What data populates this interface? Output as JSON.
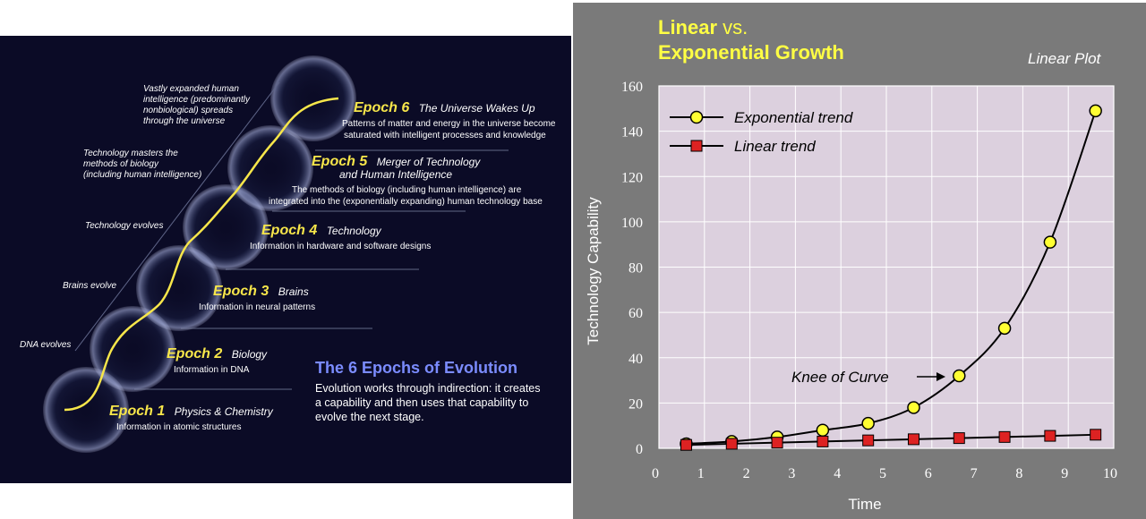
{
  "epochs_diagram": {
    "title": "The 6 Epochs of Evolution",
    "description": [
      "Evolution works through indirection: it creates",
      "a capability and then uses that capability to",
      "evolve the next stage."
    ],
    "side_labels": [
      {
        "lines": [
          "DNA evolves"
        ]
      },
      {
        "lines": [
          "Brains evolve"
        ]
      },
      {
        "lines": [
          "Technology evolves"
        ]
      },
      {
        "lines": [
          "Technology masters the",
          "methods of biology",
          "(including human intelligence)"
        ]
      },
      {
        "lines": [
          "Vastly expanded human",
          "intelligence (predominantly",
          "nonbiological) spreads",
          "through the universe"
        ]
      }
    ],
    "epochs": [
      {
        "label": "Epoch 1",
        "name": "Physics & Chemistry",
        "desc": [
          "Information in atomic structures"
        ]
      },
      {
        "label": "Epoch 2",
        "name": "Biology",
        "desc": [
          "Information in DNA"
        ]
      },
      {
        "label": "Epoch 3",
        "name": "Brains",
        "desc": [
          "Information in neural patterns"
        ]
      },
      {
        "label": "Epoch 4",
        "name": "Technology",
        "desc": [
          "Information in hardware and software designs"
        ]
      },
      {
        "label": "Epoch 5",
        "name": "Merger of Technology",
        "name2": "and Human Intelligence",
        "desc": [
          "The methods of biology (including human intelligence) are",
          "integrated into the (exponentially expanding) human technology base"
        ]
      },
      {
        "label": "Epoch 6",
        "name": "The Universe Wakes Up",
        "desc": [
          "Patterns of matter and energy in the universe become",
          "saturated with intelligent processes and knowledge"
        ]
      }
    ]
  },
  "growth_chart": {
    "title_line1_bold": "Linear",
    "title_line1_vs": "vs.",
    "title_line2": "Exponential Growth",
    "plot_label": "Linear Plot",
    "annotation": "Knee of Curve",
    "colors": {
      "background": "#7a7a7a",
      "plot_area": "#dcd0de",
      "exponential_marker": "#ffff33",
      "linear_marker": "#dd2222",
      "title": "#ffff44"
    }
  },
  "chart_data": {
    "type": "line",
    "xlabel": "Time",
    "ylabel": "Technology Capability",
    "xlim": [
      0,
      10
    ],
    "ylim": [
      0,
      160
    ],
    "x_ticks": [
      0,
      1,
      2,
      3,
      4,
      5,
      6,
      7,
      8,
      9,
      10
    ],
    "y_ticks": [
      0,
      20,
      40,
      60,
      80,
      100,
      120,
      140,
      160
    ],
    "legend": "top-left",
    "series": [
      {
        "name": "Exponential trend",
        "marker": "circle",
        "x": [
          0.6,
          1.6,
          2.6,
          3.6,
          4.6,
          5.6,
          6.6,
          7.6,
          8.6,
          9.6
        ],
        "values": [
          2,
          3,
          5,
          8,
          11,
          18,
          32,
          53,
          91,
          149
        ]
      },
      {
        "name": "Linear trend",
        "marker": "square",
        "x": [
          0.6,
          1.6,
          2.6,
          3.6,
          4.6,
          5.6,
          6.6,
          7.6,
          8.6,
          9.6
        ],
        "values": [
          1.5,
          2,
          2.5,
          3,
          3.5,
          4,
          4.5,
          5,
          5.5,
          6
        ]
      }
    ]
  }
}
